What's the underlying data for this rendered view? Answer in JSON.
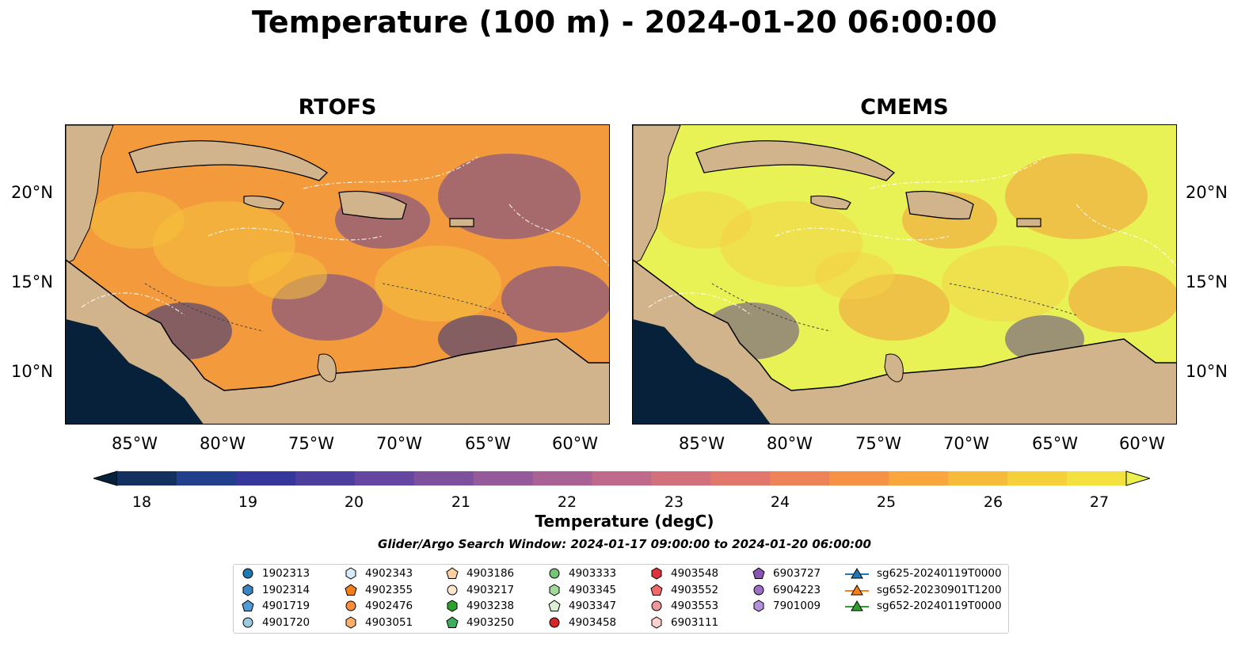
{
  "title": "Temperature (100 m) - 2024-01-20 06:00:00",
  "panels": [
    {
      "title": "RTOFS",
      "colors": {
        "base": "#f29a3c",
        "warm": "#f6c23c",
        "cool": "#6a4394",
        "deep": "#2a2d80"
      }
    },
    {
      "title": "CMEMS",
      "colors": {
        "base": "#e8f255",
        "warm": "#f4d247",
        "cool": "#f29a3c",
        "deep": "#5b4190"
      }
    }
  ],
  "lon_ticks": [
    "85°W",
    "80°W",
    "75°W",
    "70°W",
    "65°W",
    "60°W"
  ],
  "lat_ticks": [
    "20°N",
    "15°N",
    "10°N"
  ],
  "colorbar": {
    "ticks": [
      "18",
      "19",
      "20",
      "21",
      "22",
      "23",
      "24",
      "25",
      "26",
      "27"
    ],
    "label": "Temperature (degC)",
    "colors": [
      "#07213a",
      "#13305e",
      "#223f8e",
      "#35379a",
      "#4b3e9d",
      "#6547a1",
      "#7d509e",
      "#955a9a",
      "#aa6295",
      "#bf6a8b",
      "#d2707c",
      "#e2776c",
      "#ee8259",
      "#f69245",
      "#f8a63d",
      "#f7bb3b",
      "#f5d03a",
      "#f3e13f",
      "#ebf04c"
    ]
  },
  "search_window": "Glider/Argo Search Window: 2024-01-17 09:00:00 to 2024-01-20 06:00:00",
  "legend": [
    [
      {
        "label": "1902313",
        "marker": "circle",
        "color": "#1f77b4"
      },
      {
        "label": "1902314",
        "marker": "hexagon",
        "color": "#3a84c0"
      },
      {
        "label": "4901719",
        "marker": "pentagon",
        "color": "#4f9bd6"
      },
      {
        "label": "4901720",
        "marker": "circle",
        "color": "#9ecae1"
      }
    ],
    [
      {
        "label": "4902343",
        "marker": "hexagon",
        "color": "#d6eaf8"
      },
      {
        "label": "4902355",
        "marker": "pentagon",
        "color": "#f57f17"
      },
      {
        "label": "4902476",
        "marker": "circle",
        "color": "#fd8d3c"
      },
      {
        "label": "4903051",
        "marker": "hexagon",
        "color": "#fdae6b"
      }
    ],
    [
      {
        "label": "4903186",
        "marker": "pentagon",
        "color": "#fdd0a2"
      },
      {
        "label": "4903217",
        "marker": "circle",
        "color": "#fee6ce"
      },
      {
        "label": "4903238",
        "marker": "hexagon",
        "color": "#2ca02c"
      },
      {
        "label": "4903250",
        "marker": "pentagon",
        "color": "#41ab5d"
      }
    ],
    [
      {
        "label": "4903333",
        "marker": "circle",
        "color": "#74c476"
      },
      {
        "label": "4903345",
        "marker": "hexagon",
        "color": "#a1d99b"
      },
      {
        "label": "4903347",
        "marker": "pentagon",
        "color": "#d9f0d3"
      },
      {
        "label": "4903458",
        "marker": "circle",
        "color": "#d62728"
      }
    ],
    [
      {
        "label": "4903548",
        "marker": "hexagon",
        "color": "#e0303a"
      },
      {
        "label": "4903552",
        "marker": "pentagon",
        "color": "#ef6b6b"
      },
      {
        "label": "4903553",
        "marker": "circle",
        "color": "#f29797"
      },
      {
        "label": "6903111",
        "marker": "hexagon",
        "color": "#fbd0d0"
      }
    ],
    [
      {
        "label": "6903727",
        "marker": "pentagon",
        "color": "#8a56b3"
      },
      {
        "label": "6904223",
        "marker": "circle",
        "color": "#9e6fc7"
      },
      {
        "label": "7901009",
        "marker": "hexagon",
        "color": "#b590dc"
      }
    ],
    [
      {
        "label": "sg625-20240119T0000",
        "marker": "triangle-line",
        "color": "#1f77b4"
      },
      {
        "label": "sg652-20230901T1200",
        "marker": "triangle-line",
        "color": "#ff7f0e"
      },
      {
        "label": "sg652-20240119T0000",
        "marker": "triangle-line",
        "color": "#2ca02c"
      }
    ]
  ]
}
